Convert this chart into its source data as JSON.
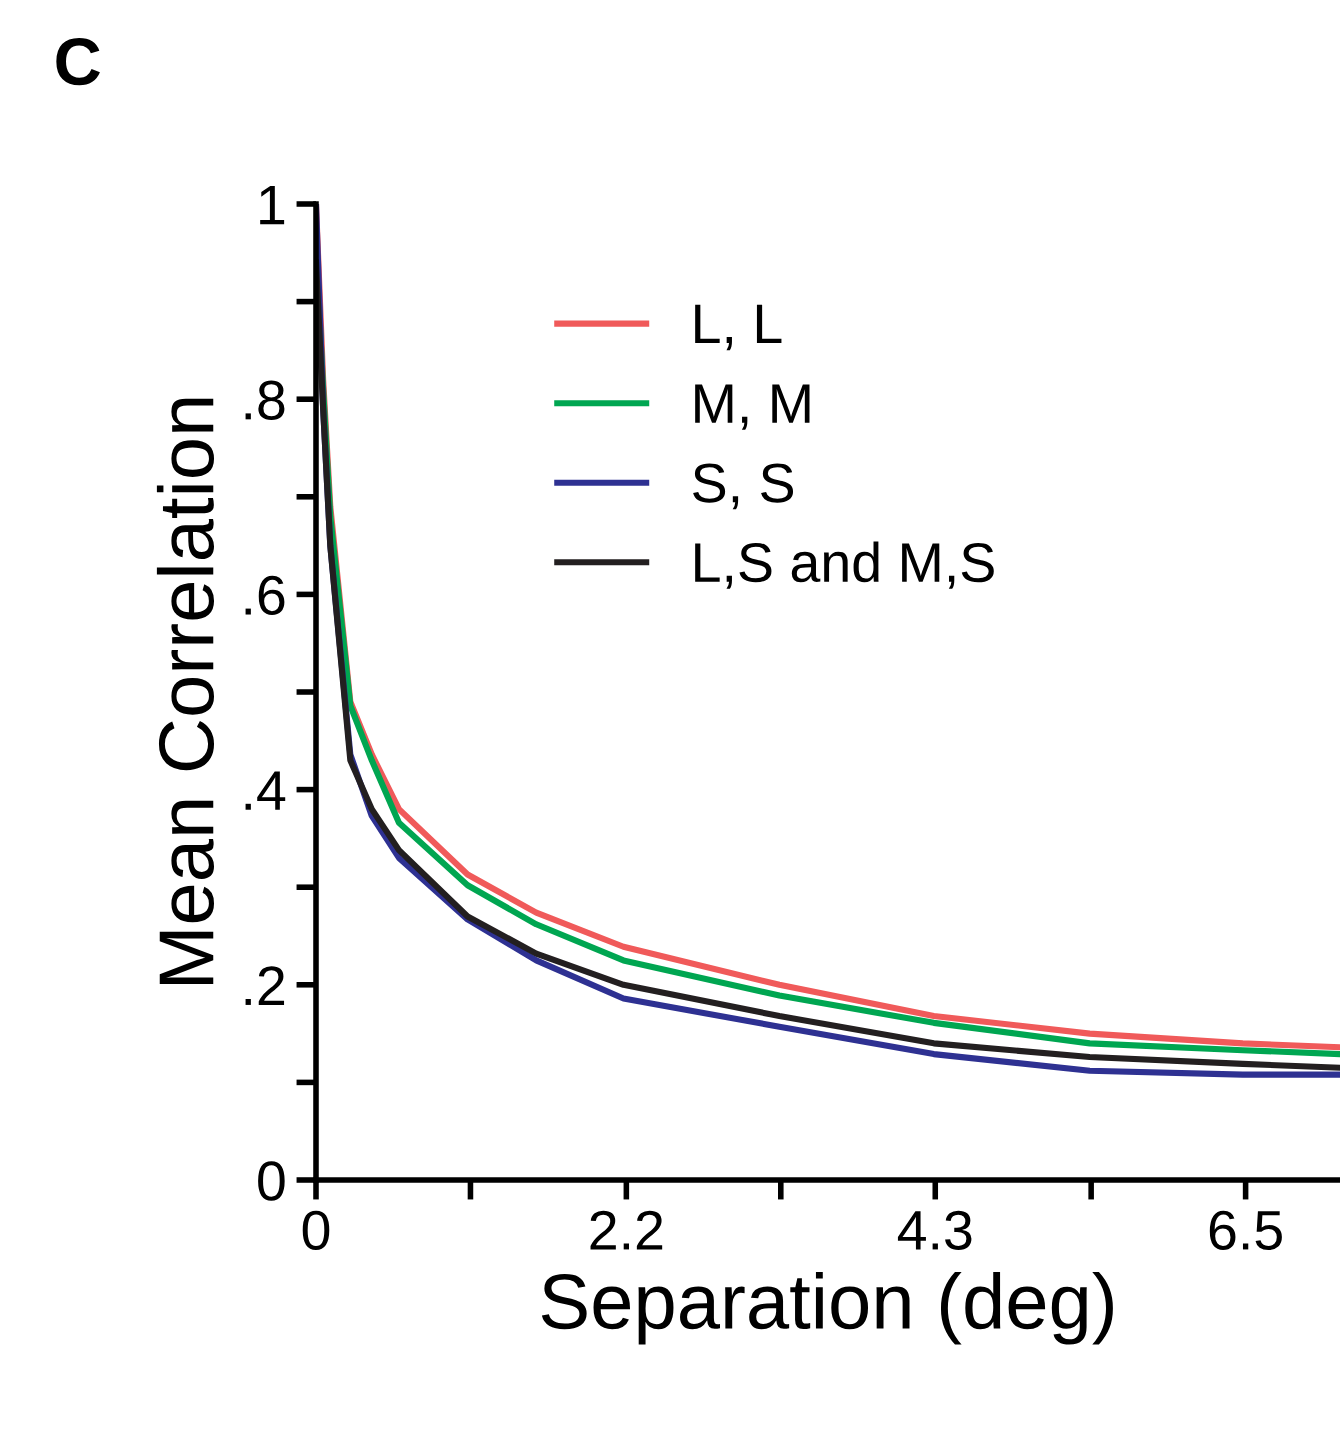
{
  "chart_data": {
    "type": "line",
    "title": "C",
    "xlabel": "Separation (deg)",
    "ylabel": "Mean Correlation",
    "xlim": [
      0,
      7.16
    ],
    "ylim": [
      0,
      1
    ],
    "xticks": [
      0,
      {
        "value": 1.08,
        "label": null
      },
      {
        "value": 2.17,
        "label": "2.2"
      },
      {
        "value": 3.25,
        "label": null
      },
      {
        "value": 4.33,
        "label": "4.3"
      },
      {
        "value": 5.42,
        "label": null
      },
      {
        "value": 6.5,
        "label": "6.5"
      }
    ],
    "yticks": [
      0,
      {
        "value": 0.1,
        "label": null
      },
      {
        "value": 0.2,
        "label": ".2"
      },
      {
        "value": 0.3,
        "label": null
      },
      {
        "value": 0.4,
        "label": ".4"
      },
      {
        "value": 0.5,
        "label": null
      },
      {
        "value": 0.6,
        "label": ".6"
      },
      {
        "value": 0.7,
        "label": null
      },
      {
        "value": 0.8,
        "label": ".8"
      },
      {
        "value": 0.9,
        "label": null
      },
      1
    ],
    "x": [
      0,
      0.05,
      0.1,
      0.24,
      0.39,
      0.58,
      1.06,
      1.54,
      2.15,
      3.24,
      4.32,
      5.41,
      6.48,
      7.16
    ],
    "series": [
      {
        "name": "L, L",
        "color": "#f05a5a",
        "values": [
          1,
          0.82,
          0.69,
          0.49,
          0.436,
          0.38,
          0.313,
          0.274,
          0.239,
          0.2,
          0.168,
          0.15,
          0.14,
          0.136
        ]
      },
      {
        "name": "M, M",
        "color": "#00a651",
        "values": [
          0.96,
          0.81,
          0.68,
          0.486,
          0.43,
          0.366,
          0.302,
          0.262,
          0.225,
          0.189,
          0.161,
          0.14,
          0.133,
          0.129
        ]
      },
      {
        "name": "S, S",
        "color": "#2e3192",
        "values": [
          1,
          0.79,
          0.65,
          0.436,
          0.373,
          0.33,
          0.267,
          0.225,
          0.186,
          0.157,
          0.129,
          0.112,
          0.108,
          0.108
        ]
      },
      {
        "name": "L,S and M,S",
        "color": "#231f20",
        "values": [
          0.94,
          0.79,
          0.65,
          0.43,
          0.38,
          0.338,
          0.27,
          0.232,
          0.2,
          0.168,
          0.14,
          0.126,
          0.119,
          0.115
        ]
      }
    ],
    "legend": "top",
    "grid": false,
    "line_style": "solid",
    "marker": "none"
  }
}
